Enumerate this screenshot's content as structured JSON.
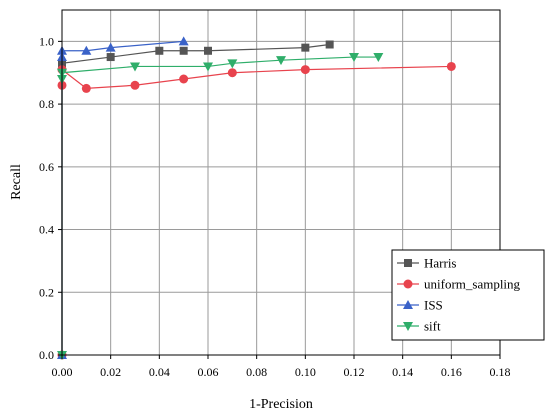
{
  "chart_data": {
    "type": "line",
    "title": "",
    "xlabel": "1-Precision",
    "ylabel": "Recall",
    "xlim": [
      0,
      0.18
    ],
    "ylim": [
      0,
      1.1
    ],
    "xticks": [
      "0.00",
      "0.02",
      "0.04",
      "0.06",
      "0.08",
      "0.10",
      "0.12",
      "0.14",
      "0.16",
      "0.18"
    ],
    "yticks": [
      "0.0",
      "0.2",
      "0.4",
      "0.6",
      "0.8",
      "1.0"
    ],
    "grid": true,
    "legend_position": "bottom-right",
    "series": [
      {
        "name": "Harris",
        "color": "#555555",
        "marker": "square",
        "x": [
          0,
          0,
          0.02,
          0.04,
          0.05,
          0.06,
          0.1,
          0.11
        ],
        "y": [
          0,
          0.93,
          0.95,
          0.97,
          0.97,
          0.97,
          0.98,
          0.99
        ]
      },
      {
        "name": "uniform_sampling",
        "color": "#e8434d",
        "marker": "circle",
        "x": [
          0,
          0,
          0,
          0.01,
          0.03,
          0.05,
          0.07,
          0.1,
          0.16
        ],
        "y": [
          0,
          0.86,
          0.91,
          0.85,
          0.86,
          0.88,
          0.9,
          0.91,
          0.92
        ]
      },
      {
        "name": "ISS",
        "color": "#3a62c8",
        "marker": "triangle-up",
        "x": [
          0,
          0,
          0,
          0.01,
          0.02,
          0.05
        ],
        "y": [
          0,
          0.95,
          0.97,
          0.97,
          0.98,
          1.0
        ]
      },
      {
        "name": "sift",
        "color": "#2fae6a",
        "marker": "triangle-down",
        "x": [
          0,
          0,
          0,
          0.03,
          0.06,
          0.07,
          0.09,
          0.12,
          0.13
        ],
        "y": [
          0,
          0.88,
          0.9,
          0.92,
          0.92,
          0.93,
          0.94,
          0.95,
          0.95
        ]
      }
    ]
  }
}
